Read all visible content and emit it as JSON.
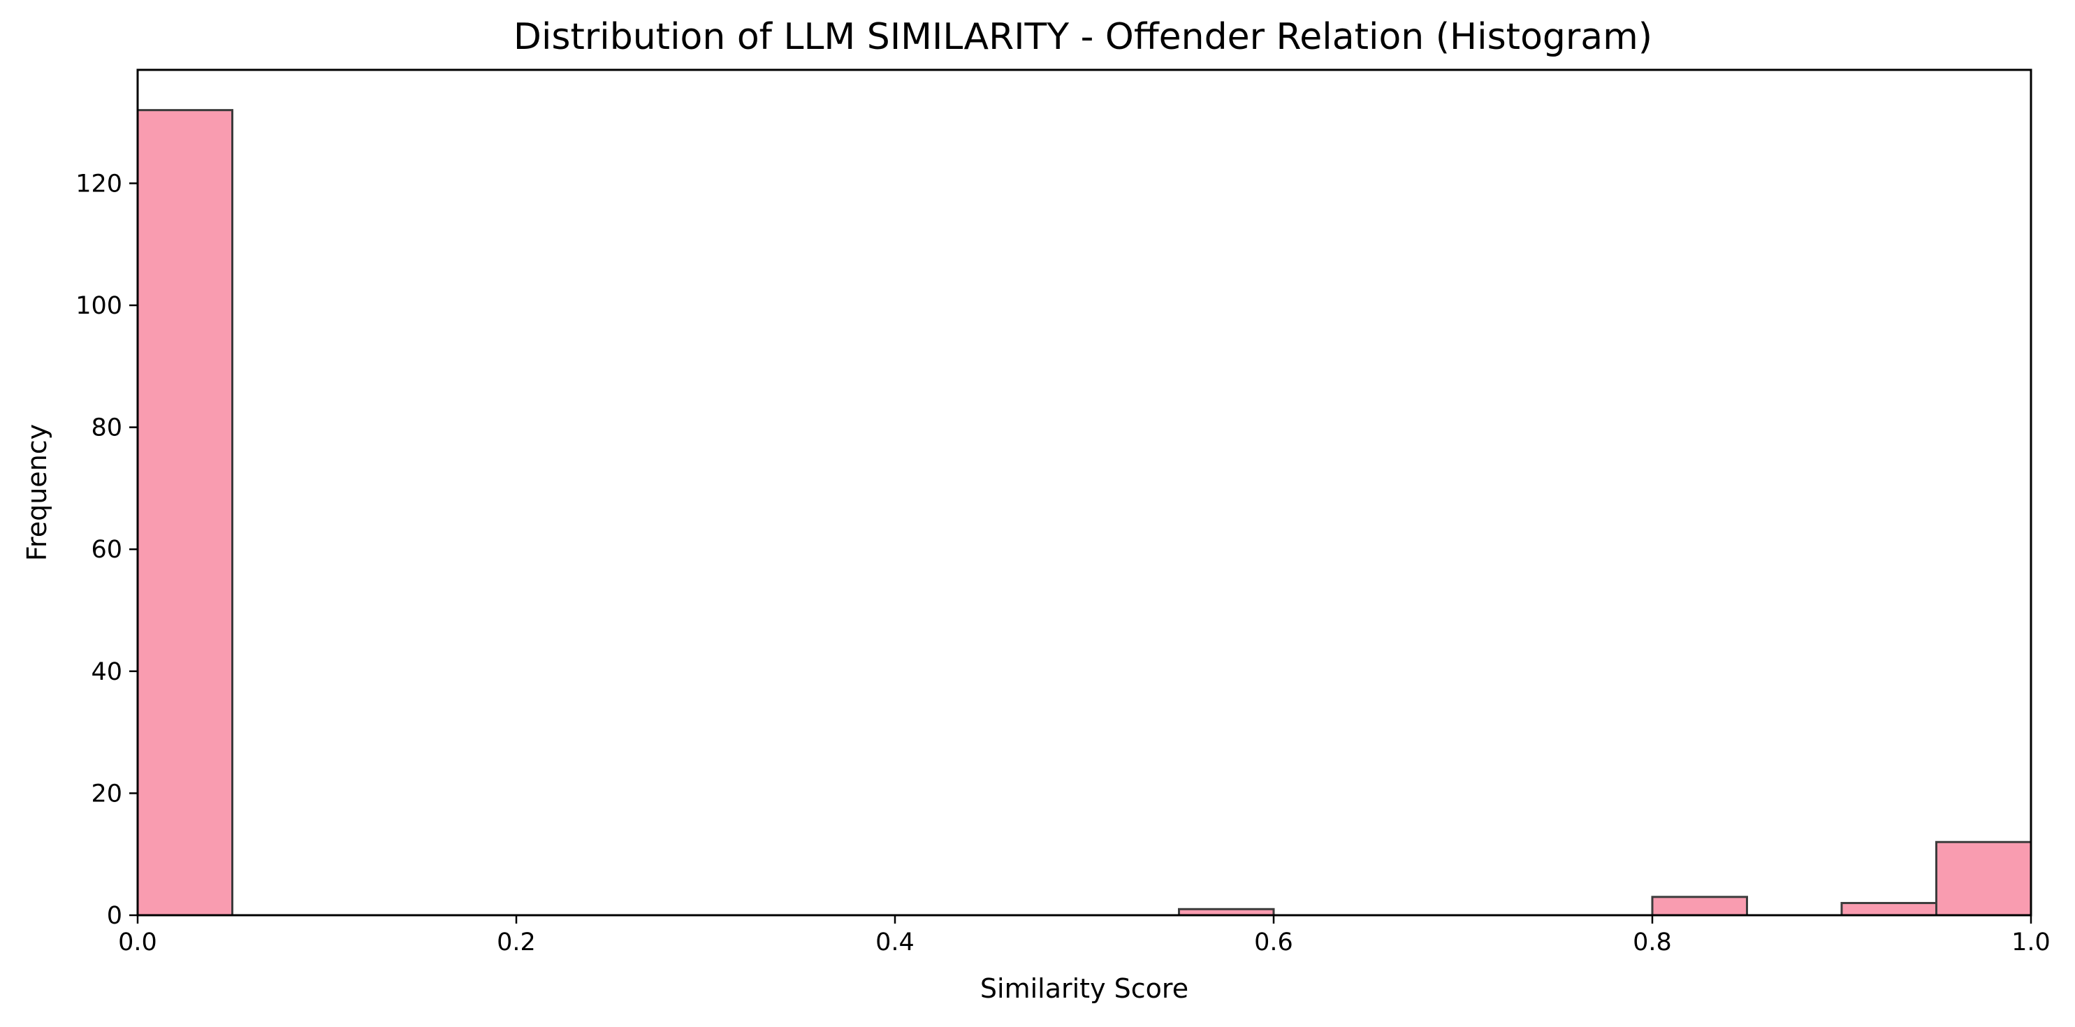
{
  "chart_data": {
    "type": "bar",
    "title": "Distribution of LLM SIMILARITY - Offender Relation (Histogram)",
    "xlabel": "Similarity Score",
    "ylabel": "Frequency",
    "xlim": [
      0.0,
      1.0
    ],
    "ylim": [
      0,
      138.6
    ],
    "x_ticks": [
      "0.0",
      "0.2",
      "0.4",
      "0.6",
      "0.8",
      "1.0"
    ],
    "y_ticks": [
      "0",
      "20",
      "40",
      "60",
      "80",
      "100",
      "120"
    ],
    "bin_width": 0.05,
    "bins": [
      {
        "start": 0.0,
        "value": 132
      },
      {
        "start": 0.55,
        "value": 1
      },
      {
        "start": 0.8,
        "value": 3
      },
      {
        "start": 0.9,
        "value": 2
      },
      {
        "start": 0.95,
        "value": 12
      }
    ],
    "grid": false,
    "bar_color": "#f99cb0",
    "edge_color": "#3c3c3c"
  }
}
